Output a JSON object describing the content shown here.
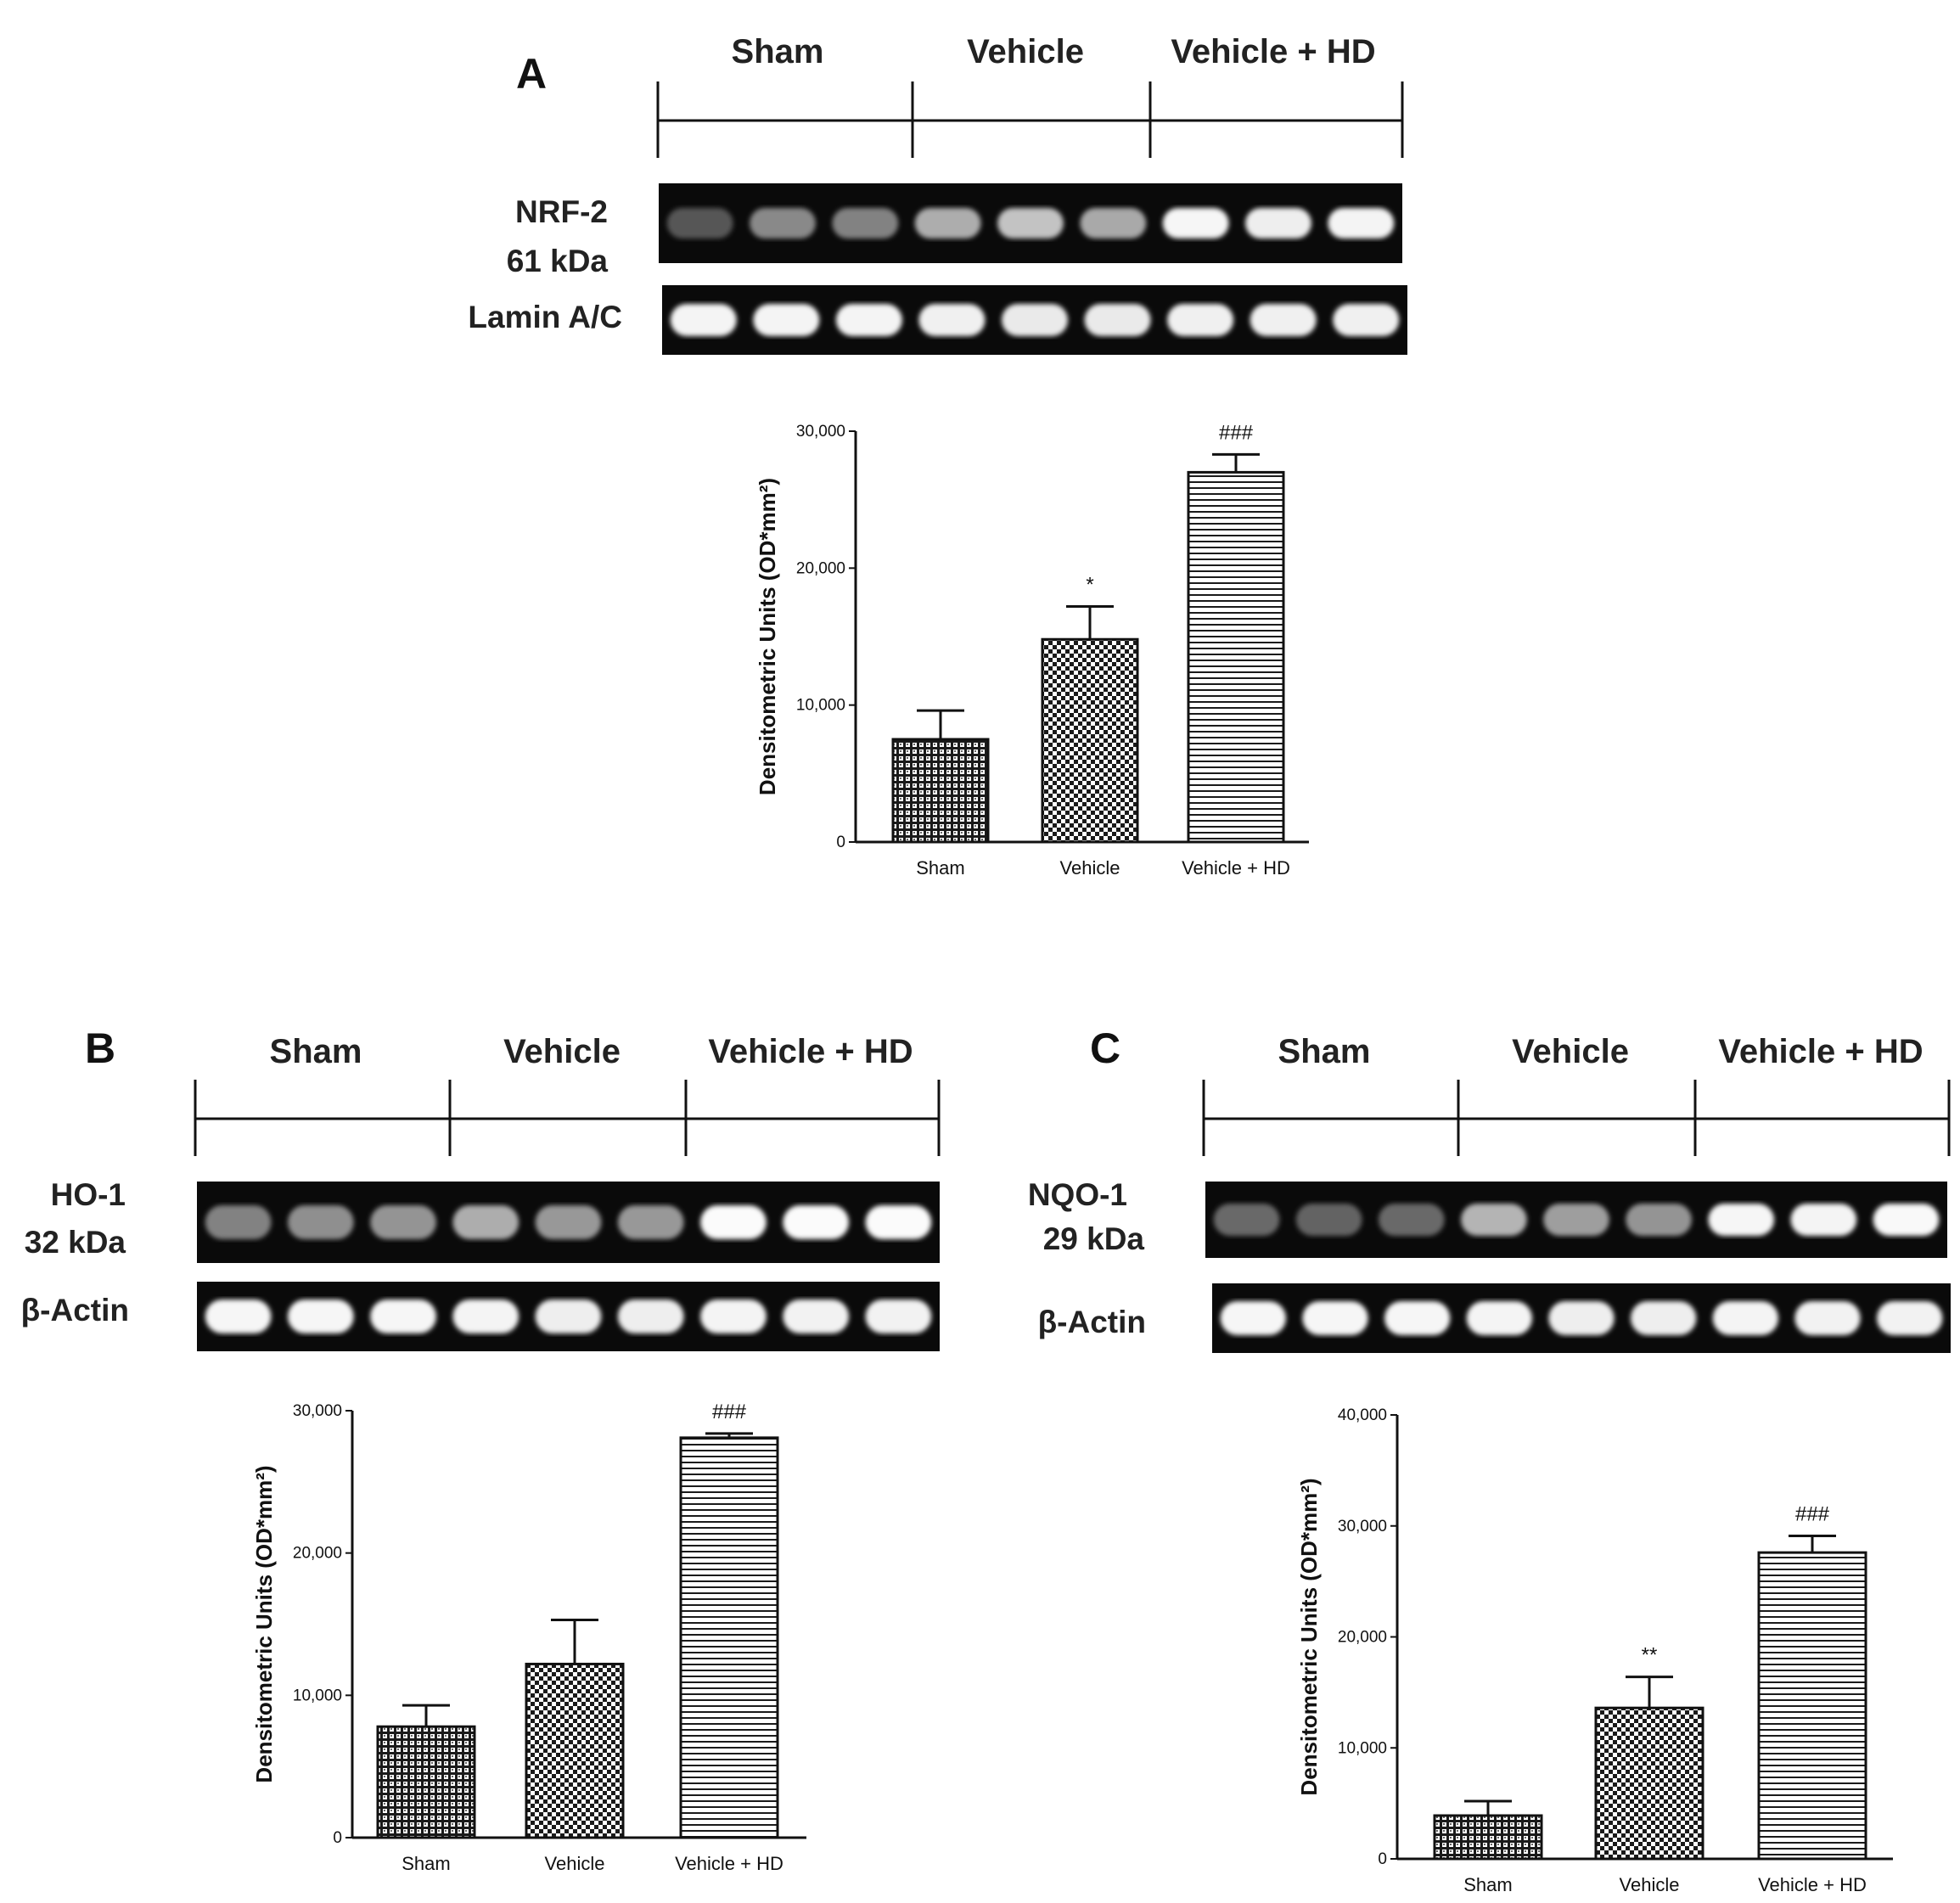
{
  "panels": [
    {
      "letter": "A",
      "groups": [
        "Sham",
        "Vehicle",
        "Vehicle + HD"
      ],
      "blot_target": [
        "NRF-2",
        "61 kDa"
      ],
      "blot_control": "Lamin A/C",
      "target_intensities": [
        0.22,
        0.45,
        0.42,
        0.62,
        0.72,
        0.6,
        0.96,
        0.92,
        0.95
      ],
      "control_intensities": [
        0.95,
        0.95,
        0.95,
        0.93,
        0.9,
        0.9,
        0.93,
        0.93,
        0.93
      ]
    },
    {
      "letter": "B",
      "groups": [
        "Sham",
        "Vehicle",
        "Vehicle + HD"
      ],
      "blot_target": [
        "HO-1",
        "32 kDa"
      ],
      "blot_control": "β-Actin",
      "target_intensities": [
        0.42,
        0.48,
        0.5,
        0.62,
        0.52,
        0.52,
        0.98,
        0.98,
        0.98
      ],
      "control_intensities": [
        0.96,
        0.96,
        0.96,
        0.95,
        0.92,
        0.92,
        0.95,
        0.94,
        0.94
      ]
    },
    {
      "letter": "C",
      "groups": [
        "Sham",
        "Vehicle",
        "Vehicle + HD"
      ],
      "blot_target": [
        "NQO-1",
        "29 kDa"
      ],
      "blot_control": "β-Actin",
      "target_intensities": [
        0.3,
        0.28,
        0.3,
        0.65,
        0.55,
        0.5,
        0.96,
        0.95,
        0.97
      ],
      "control_intensities": [
        0.96,
        0.96,
        0.96,
        0.95,
        0.92,
        0.92,
        0.95,
        0.94,
        0.94
      ]
    }
  ],
  "chart_data": [
    {
      "type": "bar",
      "categories": [
        "Sham",
        "Vehicle",
        "Vehicle + HD"
      ],
      "values": [
        7500,
        14800,
        27000
      ],
      "errors": [
        2100,
        2400,
        1300
      ],
      "significance": [
        "",
        "*",
        "###"
      ],
      "ylabel": "Densitometric Units (OD*mm²)",
      "ylim": [
        0,
        30000
      ],
      "yticks": [
        "0",
        "10,000",
        "20,000",
        "30,000"
      ],
      "patterns": [
        "grid",
        "checker",
        "hlines"
      ]
    },
    {
      "type": "bar",
      "categories": [
        "Sham",
        "Vehicle",
        "Vehicle + HD"
      ],
      "values": [
        7800,
        12200,
        28100
      ],
      "errors": [
        1500,
        3100,
        300
      ],
      "significance": [
        "",
        "",
        "###"
      ],
      "ylabel": "Densitometric Units (OD*mm²)",
      "ylim": [
        0,
        30000
      ],
      "yticks": [
        "0",
        "10,000",
        "20,000",
        "30,000"
      ],
      "patterns": [
        "grid",
        "checker",
        "hlines"
      ]
    },
    {
      "type": "bar",
      "categories": [
        "Sham",
        "Vehicle",
        "Vehicle + HD"
      ],
      "values": [
        3900,
        13600,
        27600
      ],
      "errors": [
        1300,
        2800,
        1500
      ],
      "significance": [
        "",
        "**",
        "###"
      ],
      "ylabel": "Densitometric Units (OD*mm²)",
      "ylim": [
        0,
        40000
      ],
      "yticks": [
        "0",
        "10,000",
        "20,000",
        "30,000",
        "40,000"
      ],
      "patterns": [
        "grid",
        "checker",
        "hlines"
      ]
    }
  ]
}
